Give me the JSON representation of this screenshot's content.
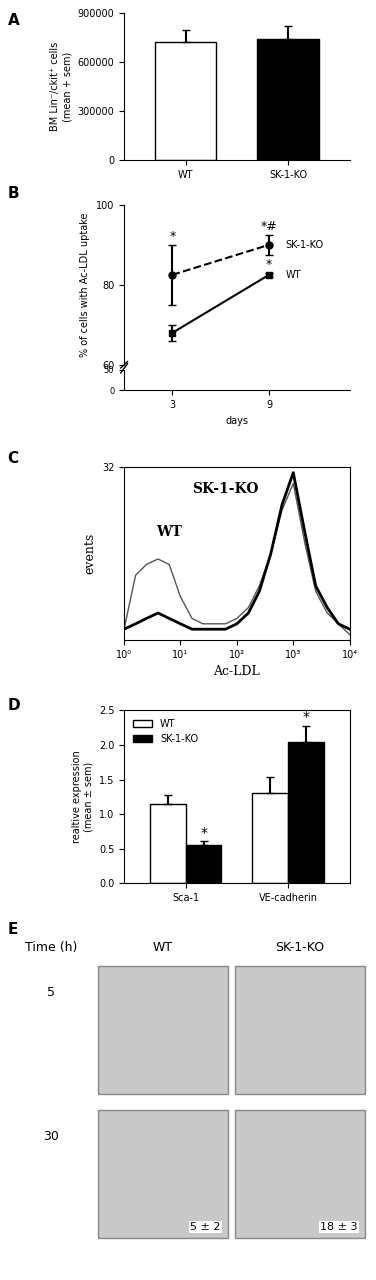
{
  "chart_data": [
    {
      "panel": "A",
      "type": "bar",
      "categories": [
        "WT",
        "SK-1-KO"
      ],
      "values": [
        720000,
        740000
      ],
      "errors": [
        75000,
        80000
      ],
      "colors": [
        "#ffffff",
        "#000000"
      ],
      "ylabel": "BM Lin⁻/ckit⁺ cells\n(mean + sem)",
      "ylim": [
        0,
        900000
      ],
      "yticks": [
        0,
        300000,
        600000,
        900000
      ]
    },
    {
      "panel": "B",
      "type": "line",
      "x": [
        3,
        9
      ],
      "xlabel": "days",
      "ylabel": "% of cells with Ac-LDL uptake",
      "xlim": [
        0,
        14
      ],
      "xticks": [
        3,
        9
      ],
      "ylim": [
        60,
        100
      ],
      "yticks": [
        60,
        80,
        100
      ],
      "ylim_lower": [
        0,
        50
      ],
      "yticks_lower": [
        0,
        50
      ],
      "series": [
        {
          "name": "SK-1-KO",
          "color": "#000000",
          "line_style": "dashed",
          "marker": "o",
          "values": [
            82.5,
            90
          ],
          "errors": [
            7.5,
            2.5
          ]
        },
        {
          "name": "WT",
          "color": "#000000",
          "line_style": "solid",
          "marker": "s",
          "values": [
            68,
            82.5
          ],
          "errors": [
            2,
            0.5
          ]
        }
      ],
      "annotations": [
        {
          "text": "*",
          "series": "SK-1-KO",
          "index": 0
        },
        {
          "text": "*#",
          "series": "SK-1-KO",
          "index": 1
        },
        {
          "text": "*",
          "series": "WT",
          "index": 1
        }
      ]
    },
    {
      "panel": "C",
      "type": "line",
      "log": "x",
      "xlabel": "Ac-LDL",
      "ylabel": "events",
      "x": [
        1,
        1.6,
        2.5,
        4,
        6.3,
        10,
        16,
        25,
        40,
        63,
        100,
        160,
        250,
        400,
        630,
        1000,
        1600,
        2500,
        4000,
        6300,
        10000
      ],
      "xlim": [
        1,
        10000
      ],
      "xticks": [
        {
          "value": 1,
          "label": "10⁰"
        },
        {
          "value": 10,
          "label": "10¹"
        },
        {
          "value": 100,
          "label": "10²"
        },
        {
          "value": 1000,
          "label": "10³"
        },
        {
          "value": 10000,
          "label": "10⁴"
        }
      ],
      "ylim": [
        0,
        32
      ],
      "yticks": [
        32
      ],
      "series": [
        {
          "name": "WT",
          "color": "#555555",
          "values": [
            2,
            12,
            14,
            15,
            14,
            8,
            4,
            3,
            3,
            3,
            4,
            6,
            10,
            16,
            24,
            29,
            18,
            9,
            5,
            3,
            1
          ]
        },
        {
          "name": "SK-1-KO",
          "color": "#000000",
          "values": [
            2,
            3,
            4,
            5,
            4,
            3,
            2,
            2,
            2,
            2,
            3,
            5,
            9,
            16,
            25,
            31,
            20,
            10,
            6,
            3,
            2
          ]
        }
      ]
    },
    {
      "panel": "D",
      "type": "bar",
      "categories": [
        "Sca-1",
        "VE-cadherin"
      ],
      "ylabel": "realtive expression\n(mean ± sem)",
      "ylim": [
        0,
        2.5
      ],
      "yticks": [
        {
          "value": 0,
          "label": "0.0"
        },
        {
          "value": 0.5,
          "label": "0.5"
        },
        {
          "value": 1.0,
          "label": "1.0"
        },
        {
          "value": 1.5,
          "label": "1.5"
        },
        {
          "value": 2.0,
          "label": "2.0"
        },
        {
          "value": 2.5,
          "label": "2.5"
        }
      ],
      "legend": "upper left",
      "series": [
        {
          "name": "WT",
          "color": "#ffffff",
          "values": [
            1.15,
            1.3
          ],
          "errors": [
            0.12,
            0.23
          ]
        },
        {
          "name": "SK-1-KO",
          "color": "#000000",
          "values": [
            0.55,
            2.05
          ],
          "errors": [
            0.06,
            0.23
          ]
        }
      ],
      "annotations": [
        {
          "text": "*",
          "series": "SK-1-KO",
          "index": 0
        },
        {
          "text": "*",
          "series": "SK-1-KO",
          "index": 1
        }
      ]
    },
    {
      "panel": "E",
      "type": "image_grid",
      "row_title": "Time (h)",
      "columns": [
        "WT",
        "SK-1-KO"
      ],
      "rows": [
        "5",
        "30"
      ],
      "counts": [
        {
          "row": 1,
          "column": 0,
          "label": "5 ± 2"
        },
        {
          "row": 1,
          "column": 1,
          "label": "18 ± 3"
        }
      ]
    }
  ]
}
